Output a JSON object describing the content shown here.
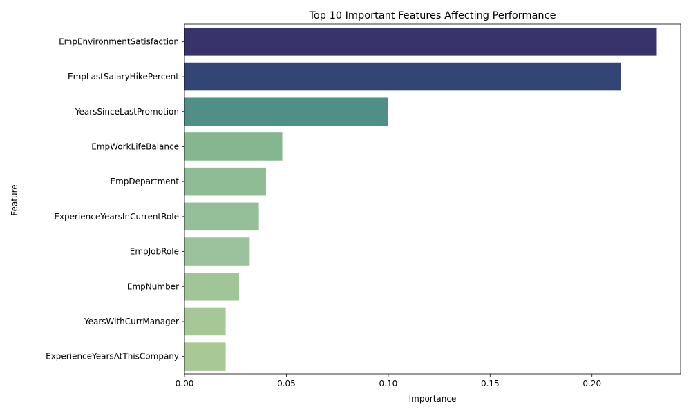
{
  "chart_data": {
    "type": "bar",
    "orientation": "horizontal",
    "title": "Top 10 Important Features Affecting Performance",
    "xlabel": "Importance",
    "ylabel": "Feature",
    "xlim": [
      0,
      0.2435
    ],
    "xticks": [
      "0.00",
      "0.05",
      "0.10",
      "0.15",
      "0.20"
    ],
    "grid": false,
    "categories": [
      "EmpEnvironmentSatisfaction",
      "EmpLastSalaryHikePercent",
      "YearsSinceLastPromotion",
      "EmpWorkLifeBalance",
      "EmpDepartment",
      "ExperienceYearsInCurrentRole",
      "EmpJobRole",
      "EmpNumber",
      "YearsWithCurrManager",
      "ExperienceYearsAtThisCompany"
    ],
    "values": [
      0.2318,
      0.214,
      0.0998,
      0.048,
      0.04,
      0.0365,
      0.032,
      0.0268,
      0.0202,
      0.0202
    ],
    "colors": [
      "#39336b",
      "#334574",
      "#508e88",
      "#85b690",
      "#8fbc95",
      "#95bf98",
      "#9bc29a",
      "#a0c597",
      "#a5c896",
      "#a8c995"
    ]
  }
}
